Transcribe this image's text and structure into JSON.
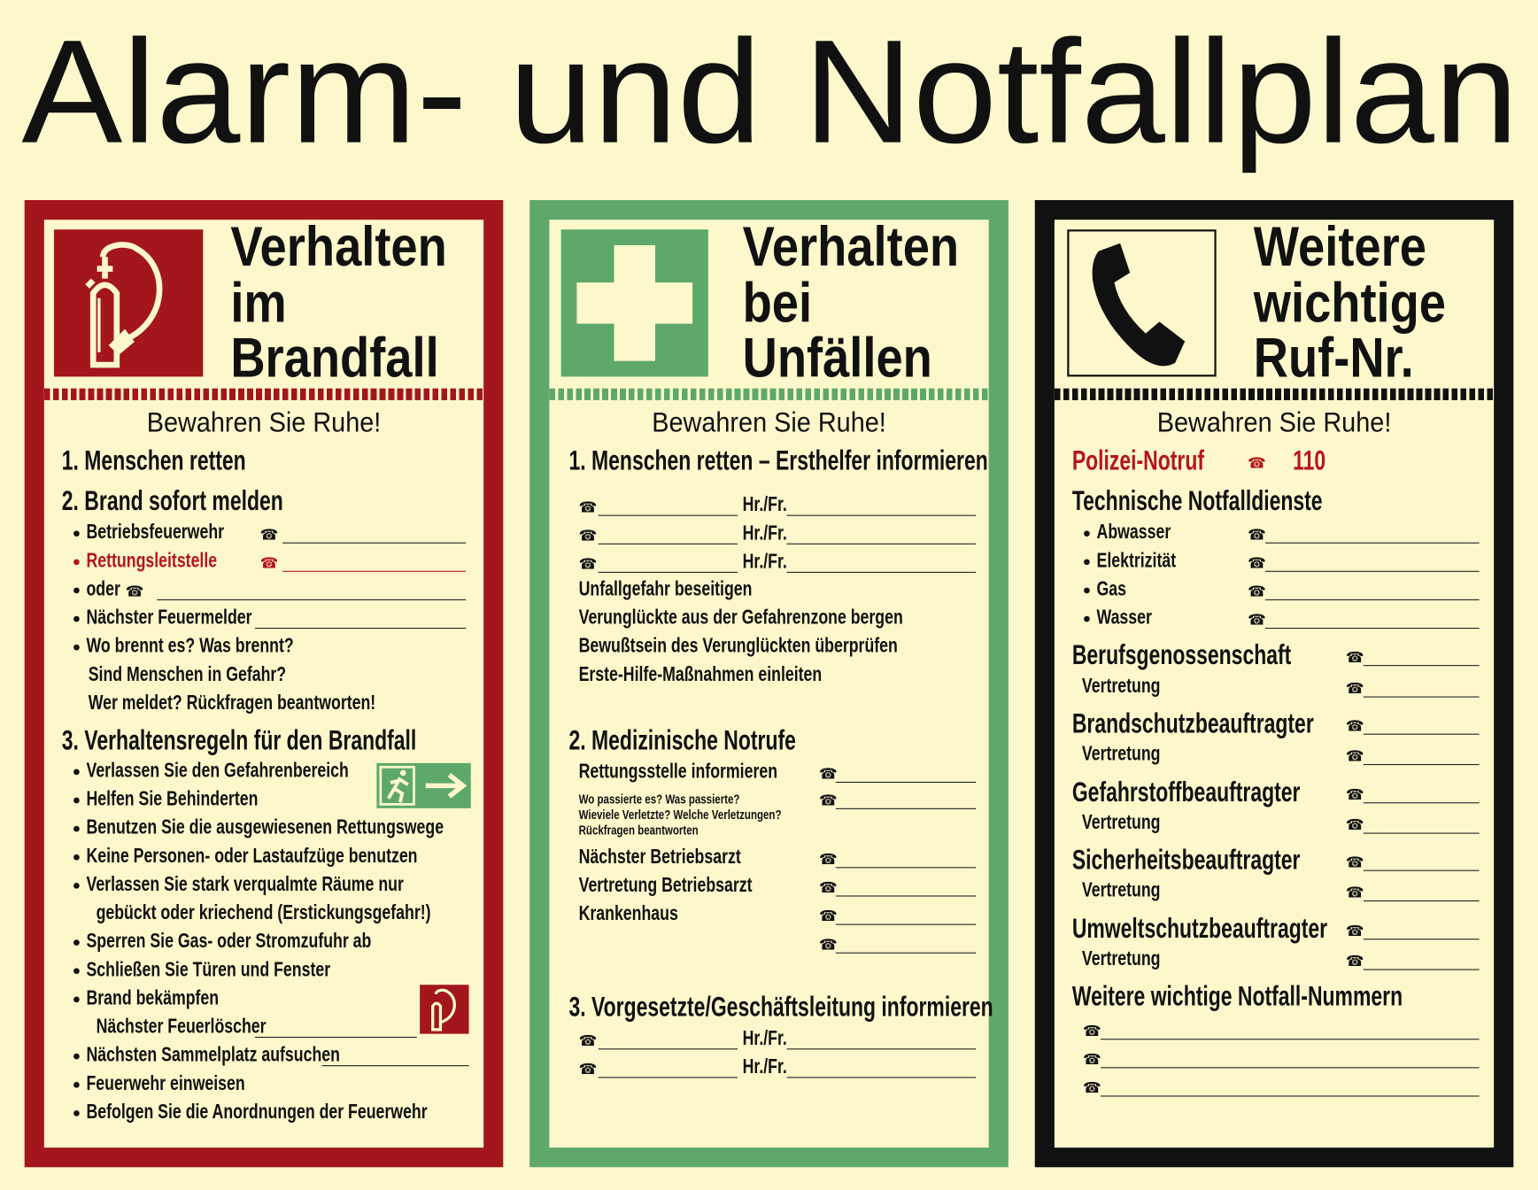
{
  "title": "Alarm- und Notfallplan",
  "colors": {
    "background": "#fcf8cb",
    "fire": "#a3161c",
    "first_aid": "#5ea86a",
    "phone": "#111111"
  },
  "panels": {
    "fire": {
      "icon": "fire-extinguisher-icon",
      "title_lines": [
        "Verhalten",
        "im",
        "Brandfall"
      ],
      "motto": "Bewahren Sie Ruhe!",
      "rows": [
        {
          "kind": "heading",
          "text": "1. Menschen retten"
        },
        {
          "kind": "heading",
          "text": "2. Brand sofort melden"
        },
        {
          "kind": "bullet",
          "text": "Betriebsfeuerwehr"
        },
        {
          "kind": "bullet",
          "text": "Rettungsleitstelle",
          "color": "#b5161c"
        },
        {
          "kind": "bullet",
          "text": "oder"
        },
        {
          "kind": "bullet",
          "text": "Nächster Feuermelder"
        },
        {
          "kind": "bullet",
          "text": "Wo brennt es?  Was brennt?"
        },
        {
          "kind": "text",
          "text": "Sind Menschen in Gefahr?"
        },
        {
          "kind": "text",
          "text": "Wer meldet? Rückfragen beantworten!"
        },
        {
          "kind": "heading",
          "text": "3. Verhaltensregeln für den Brandfall"
        },
        {
          "kind": "bullet",
          "text": "Verlassen Sie den Gefahrenbereich"
        },
        {
          "kind": "bullet",
          "text": "Helfen Sie Behinderten"
        },
        {
          "kind": "bullet",
          "text": "Benutzen Sie die ausgewiesenen Rettungswege"
        },
        {
          "kind": "bullet",
          "text": "Keine Personen- oder Lastaufzüge benutzen"
        },
        {
          "kind": "bullet",
          "text": "Verlassen Sie stark verqualmte Räume nur"
        },
        {
          "kind": "text",
          "text": "gebückt oder kriechend (Erstickungsgefahr!)"
        },
        {
          "kind": "bullet",
          "text": "Sperren Sie Gas- oder Stromzufuhr ab"
        },
        {
          "kind": "bullet",
          "text": "Schließen Sie Türen und Fenster"
        },
        {
          "kind": "bullet",
          "text": "Brand bekämpfen"
        },
        {
          "kind": "text",
          "text": "Nächster Feuerlöscher"
        },
        {
          "kind": "bullet",
          "text": "Nächsten Sammelplatz aufsuchen"
        },
        {
          "kind": "bullet",
          "text": "Feuerwehr einweisen"
        },
        {
          "kind": "bullet",
          "text": "Befolgen Sie die Anordnungen der Feuerwehr"
        }
      ]
    },
    "first_aid": {
      "icon": "first-aid-cross-icon",
      "title_lines": [
        "Verhalten",
        "bei",
        "Unfällen"
      ],
      "motto": "Bewahren Sie Ruhe!",
      "rows": [
        {
          "kind": "heading",
          "text": "1. Menschen retten – Ersthelfer informieren"
        },
        {
          "kind": "contact",
          "label": "Hr./Fr."
        },
        {
          "kind": "contact",
          "label": "Hr./Fr."
        },
        {
          "kind": "contact",
          "label": "Hr./Fr."
        },
        {
          "kind": "text",
          "text": "Unfallgefahr beseitigen"
        },
        {
          "kind": "text",
          "text": "Verunglückte aus der Gefahrenzone bergen"
        },
        {
          "kind": "text",
          "text": "Bewußtsein des Verunglückten überprüfen"
        },
        {
          "kind": "text",
          "text": "Erste-Hilfe-Maßnahmen einleiten"
        },
        {
          "kind": "heading",
          "text": "2. Medizinische Notrufe"
        },
        {
          "kind": "text",
          "text": "Rettungsstelle informieren"
        },
        {
          "kind": "small",
          "text": "Wo passierte es? Was passierte?"
        },
        {
          "kind": "small",
          "text": "Wieviele Verletzte? Welche Verletzungen?"
        },
        {
          "kind": "small",
          "text": "Rückfragen beantworten"
        },
        {
          "kind": "text",
          "text": "Nächster Betriebsarzt"
        },
        {
          "kind": "text",
          "text": "Vertretung Betriebsarzt"
        },
        {
          "kind": "text",
          "text": "Krankenhaus"
        },
        {
          "kind": "text",
          "text": ""
        },
        {
          "kind": "heading",
          "text": "3. Vorgesetzte/Geschäftsleitung informieren"
        },
        {
          "kind": "contact",
          "label": "Hr./Fr."
        },
        {
          "kind": "contact",
          "label": "Hr./Fr."
        }
      ]
    },
    "phone": {
      "icon": "telephone-handset-icon",
      "title_lines": [
        "Weitere",
        "wichtige",
        "Ruf-Nr."
      ],
      "motto": "Bewahren Sie Ruhe!",
      "rows": [
        {
          "kind": "heading",
          "text": "Polizei-Notruf",
          "color": "#b5161c",
          "number": "110"
        },
        {
          "kind": "heading",
          "text": "Technische Notfalldienste"
        },
        {
          "kind": "bullet",
          "text": "Abwasser"
        },
        {
          "kind": "bullet",
          "text": "Elektrizität"
        },
        {
          "kind": "bullet",
          "text": "Gas"
        },
        {
          "kind": "bullet",
          "text": "Wasser"
        },
        {
          "kind": "heading",
          "text": "Berufsgenossenschaft"
        },
        {
          "kind": "text",
          "text": "Vertretung"
        },
        {
          "kind": "heading",
          "text": "Brandschutzbeauftragter"
        },
        {
          "kind": "text",
          "text": "Vertretung"
        },
        {
          "kind": "heading",
          "text": "Gefahrstoffbeauftragter"
        },
        {
          "kind": "text",
          "text": "Vertretung"
        },
        {
          "kind": "heading",
          "text": "Sicherheitsbeauftragter"
        },
        {
          "kind": "text",
          "text": "Vertretung"
        },
        {
          "kind": "heading",
          "text": "Umweltschutzbeauftragter"
        },
        {
          "kind": "text",
          "text": "Vertretung"
        },
        {
          "kind": "heading",
          "text": "Weitere wichtige Notfall-Nummern"
        },
        {
          "kind": "text",
          "text": ""
        },
        {
          "kind": "text",
          "text": ""
        },
        {
          "kind": "text",
          "text": ""
        }
      ]
    }
  }
}
